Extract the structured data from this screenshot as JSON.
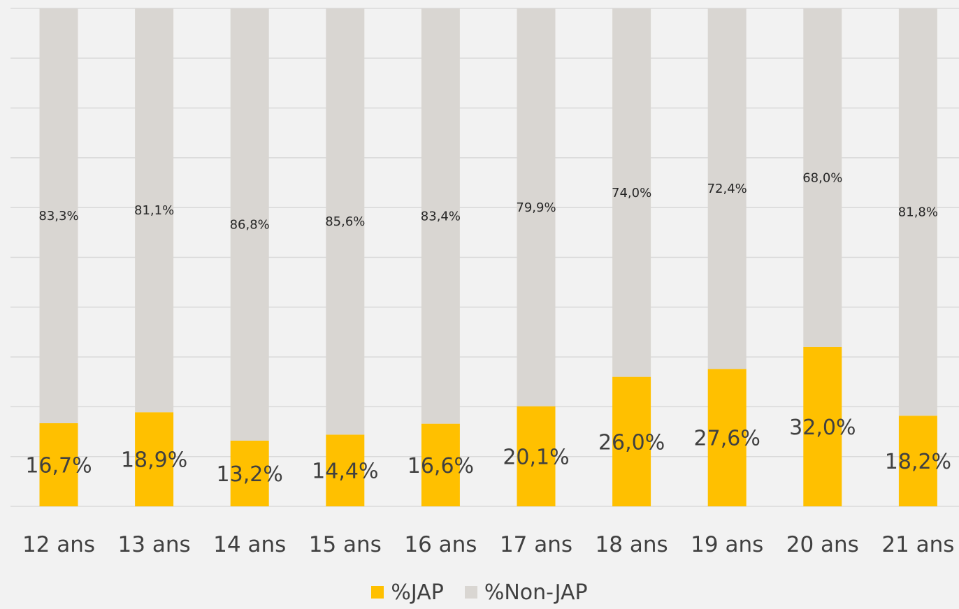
{
  "chart_data": {
    "type": "bar",
    "stacked": true,
    "categories": [
      "12 ans",
      "13 ans",
      "14 ans",
      "15 ans",
      "16 ans",
      "17 ans",
      "18 ans",
      "19 ans",
      "20 ans",
      "21 ans"
    ],
    "series": [
      {
        "name": "%JAP",
        "color": "#ffc000",
        "values": [
          16.7,
          18.9,
          13.2,
          14.4,
          16.6,
          20.1,
          26.0,
          27.6,
          32.0,
          18.2
        ],
        "labels": [
          "16,7%",
          "18,9%",
          "13,2%",
          "14,4%",
          "16,6%",
          "20,1%",
          "26,0%",
          "27,6%",
          "32,0%",
          "18,2%"
        ]
      },
      {
        "name": "%Non-JAP",
        "color": "#d9d6d2",
        "values": [
          83.3,
          81.1,
          86.8,
          85.6,
          83.4,
          79.9,
          74.0,
          72.4,
          68.0,
          81.8
        ],
        "labels": [
          "83,3%",
          "81,1%",
          "86,8%",
          "85,6%",
          "83,4%",
          "79,9%",
          "74,0%",
          "72,4%",
          "68,0%",
          "81,8%"
        ]
      }
    ],
    "ylim": [
      0,
      100
    ],
    "grid": true,
    "legend": "bottom"
  }
}
